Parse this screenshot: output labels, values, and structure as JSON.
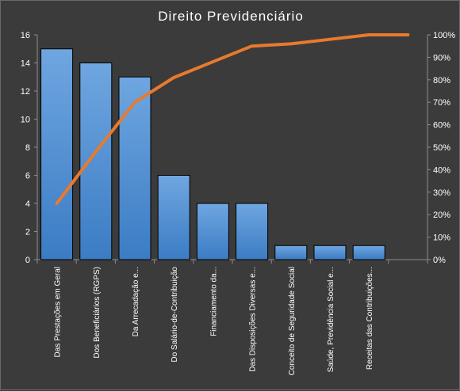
{
  "chart_data": {
    "type": "bar",
    "title": "Direito  Previdenciário",
    "categories": [
      "Das Prestações em Geral",
      "Dos Beneficiários (RGPS)",
      "Da Arrecadação e...",
      "Do Salário-de-Contribuição",
      "Financiamento da...",
      "Das Disposições Diversas e...",
      "Conceito de Seguridade Social",
      "Saúde, Previdência Social e...",
      "Receitas das Contribuições...",
      ""
    ],
    "series": [
      {
        "type": "bar",
        "values": [
          15,
          14,
          13,
          6,
          4,
          4,
          1,
          1,
          1,
          null
        ]
      },
      {
        "type": "line",
        "axis": "secondary",
        "values": [
          0.25,
          0.48,
          0.7,
          0.81,
          0.88,
          0.95,
          0.96,
          0.98,
          1.0,
          1.0
        ]
      }
    ],
    "yaxis_left": {
      "min": 0,
      "max": 16,
      "ticks": [
        "0",
        "2",
        "4",
        "6",
        "8",
        "10",
        "12",
        "14",
        "16"
      ]
    },
    "yaxis_right": {
      "min": 0,
      "max": 1,
      "ticks": [
        "0%",
        "10%",
        "20%",
        "30%",
        "40%",
        "50%",
        "60%",
        "70%",
        "80%",
        "90%",
        "100%"
      ]
    },
    "grid": false,
    "legend": "none",
    "colors": {
      "background": "#3b3b3b",
      "bar_top": "#6fa6e0",
      "bar_bottom": "#3b7cc4",
      "bar_stroke": "#000000",
      "line": "#e87a2e",
      "axis": "#8c8c8c",
      "text": "#ffffff"
    }
  }
}
